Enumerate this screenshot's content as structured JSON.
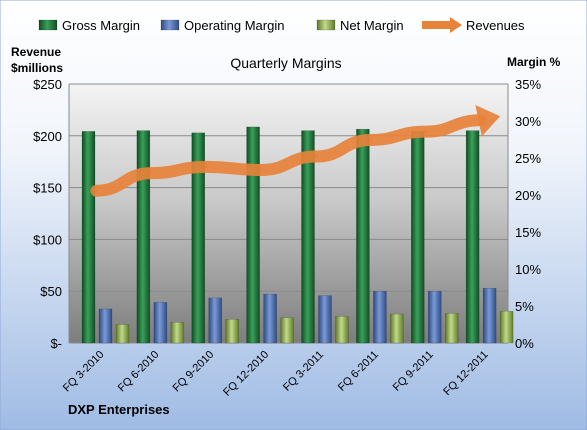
{
  "chart_data": {
    "type": "bar",
    "title": "Quarterly Margins",
    "left_axis_title_line1": "Revenue",
    "left_axis_title_line2": "$millions",
    "right_axis_title": "Margin %",
    "footer": "DXP Enterprises",
    "categories": [
      "FQ 3-2010",
      "FQ 6-2010",
      "FQ 9-2010",
      "FQ 12-2010",
      "FQ 3-2011",
      "FQ 6-2011",
      "FQ 9-2011",
      "FQ 12-2011"
    ],
    "y_left_ticks": [
      "$-",
      "$50",
      "$100",
      "$150",
      "$200",
      "$250"
    ],
    "y_right_ticks": [
      "0%",
      "5%",
      "10%",
      "15%",
      "20%",
      "25%",
      "30%",
      "35%"
    ],
    "ylim_left": [
      0,
      250
    ],
    "ylim_right": [
      0,
      35
    ],
    "series": [
      {
        "name": "Gross Margin",
        "axis": "right",
        "color": "#1f7a3a",
        "values": [
          28.6,
          28.7,
          28.4,
          29.2,
          28.7,
          28.9,
          28.6,
          28.7
        ]
      },
      {
        "name": "Operating Margin",
        "axis": "right",
        "color": "#4a6fb5",
        "values": [
          4.6,
          5.5,
          6.1,
          6.6,
          6.4,
          7.0,
          7.0,
          7.4
        ]
      },
      {
        "name": "Net Margin",
        "axis": "right",
        "color": "#9bbb59",
        "values": [
          2.5,
          2.8,
          3.2,
          3.4,
          3.6,
          3.9,
          4.0,
          4.3
        ]
      },
      {
        "name": "Revenues",
        "axis": "left",
        "color": "#e7823a",
        "values": [
          147,
          164,
          170,
          167,
          180,
          196,
          204,
          215
        ]
      }
    ],
    "grid": true,
    "legend_position": "top"
  }
}
